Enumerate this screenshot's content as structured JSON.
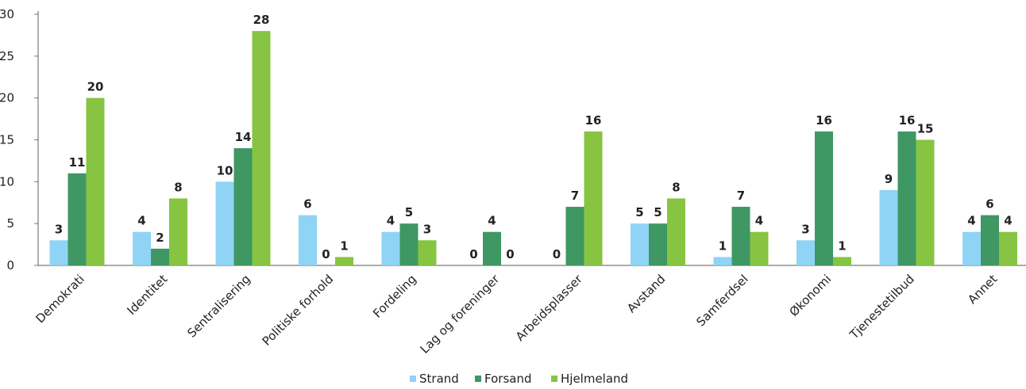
{
  "chart_data": {
    "type": "bar",
    "title": "",
    "xlabel": "",
    "ylabel": "",
    "ylim": [
      0,
      30
    ],
    "yticks": [
      0,
      5,
      10,
      15,
      20,
      25,
      30
    ],
    "grid": false,
    "legend_position": "bottom",
    "categories": [
      "Demokrati",
      "Identitet",
      "Sentralisering",
      "Politiske forhold",
      "Fordeling",
      "Lag og foreninger",
      "Arbeidsplasser",
      "Avstand",
      "Samferdsel",
      "Økonomi",
      "Tjenestetilbud",
      "Annet"
    ],
    "series": [
      {
        "name": "Strand",
        "color": "#8fd4f5",
        "values": [
          3,
          4,
          10,
          6,
          4,
          0,
          0,
          5,
          1,
          3,
          9,
          4
        ]
      },
      {
        "name": "Forsand",
        "color": "#3f9763",
        "values": [
          11,
          2,
          14,
          0,
          5,
          4,
          7,
          5,
          7,
          16,
          16,
          6
        ]
      },
      {
        "name": "Hjelmeland",
        "color": "#86c441",
        "values": [
          20,
          8,
          28,
          1,
          3,
          0,
          16,
          8,
          4,
          1,
          15,
          4
        ]
      }
    ]
  }
}
